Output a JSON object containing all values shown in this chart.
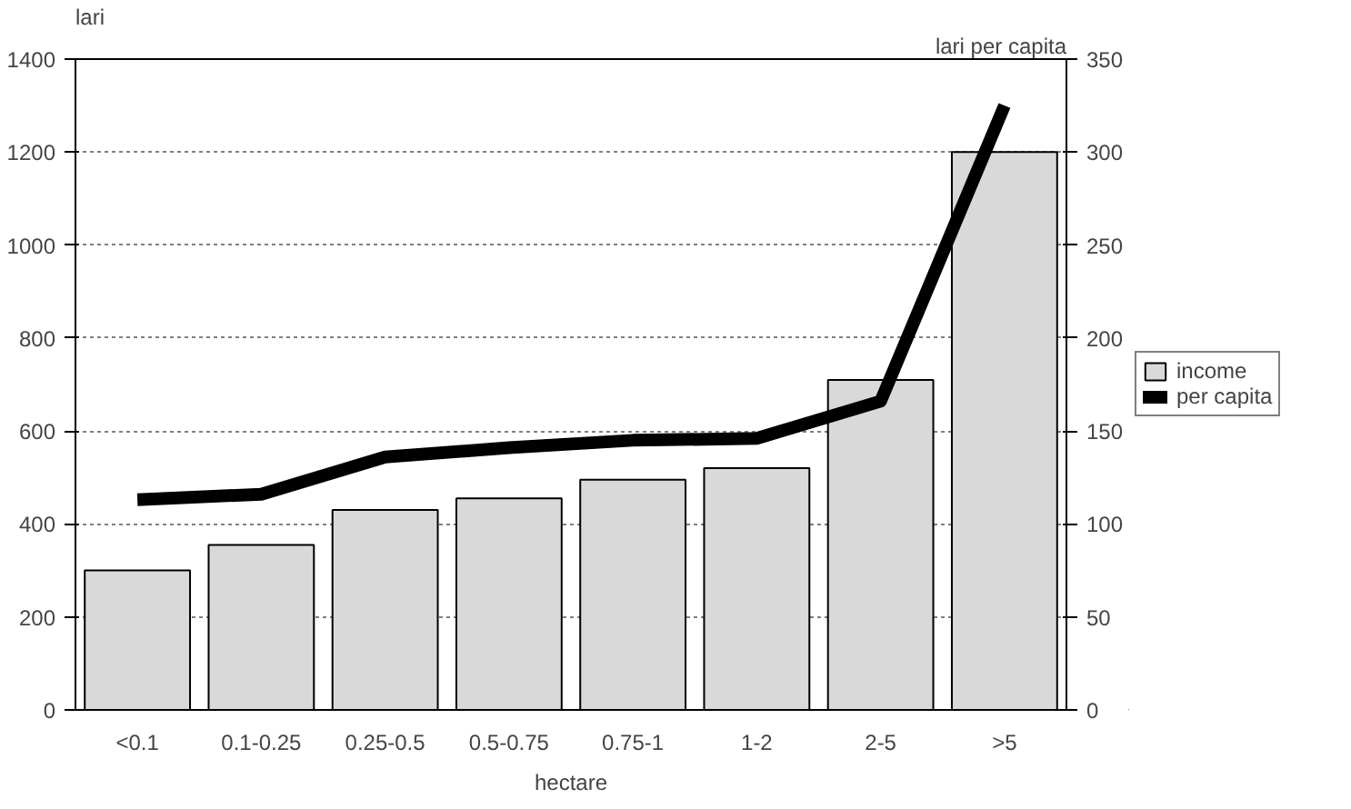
{
  "chart_data": {
    "type": "bar",
    "xlabel": "hectare",
    "ylabel": "lari",
    "y2label": "lari per capita",
    "categories": [
      "<0.1",
      "0.1-0.25",
      "0.25-0.5",
      "0.5-0.75",
      "0.75-1",
      "1-2",
      "2-5",
      ">5"
    ],
    "series": [
      {
        "name": "income",
        "color": "#d9d9d9",
        "values": [
          300,
          355,
          430,
          455,
          495,
          520,
          710,
          1200
        ]
      },
      {
        "name": "per capita",
        "type": "line",
        "axis": "y2",
        "color": "#000000",
        "values": [
          113,
          116,
          136,
          141,
          145,
          146,
          166,
          325
        ]
      }
    ],
    "ylim": [
      0,
      1400
    ],
    "yticks": [
      0,
      200,
      400,
      600,
      800,
      1000,
      1200,
      1400
    ],
    "y2lim": [
      0,
      350
    ],
    "y2ticks": [
      0,
      50,
      100,
      150,
      200,
      250,
      300,
      350
    ],
    "grid": "y",
    "legend": "right",
    "line_style": "solid",
    "marker": "none"
  }
}
